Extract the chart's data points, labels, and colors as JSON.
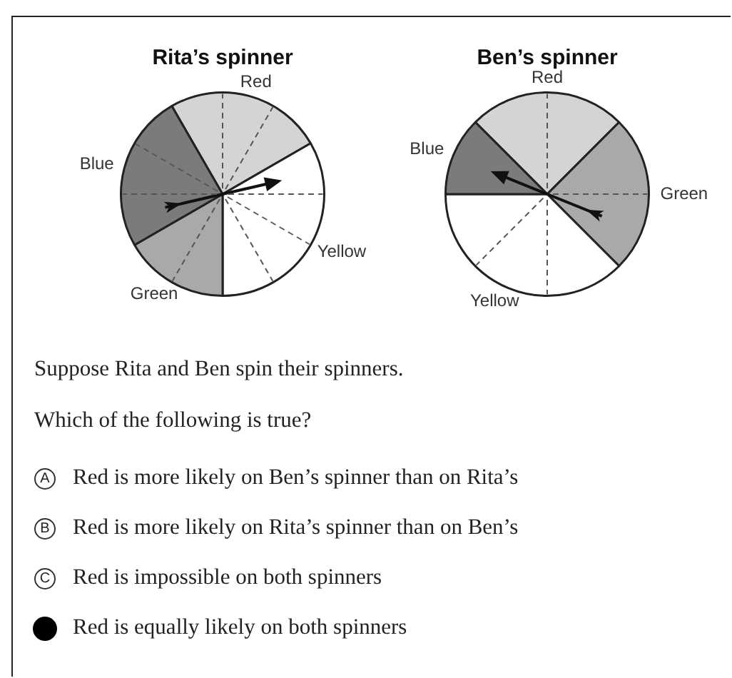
{
  "chart_data": [
    {
      "type": "pie",
      "title": "Rita’s spinner",
      "categories": [
        "Red",
        "Yellow",
        "Green",
        "Blue"
      ],
      "values": [
        25,
        33.33,
        16.67,
        25
      ],
      "colors": [
        "#d4d4d4",
        "#ffffff",
        "#a9a9a9",
        "#7b7b7b"
      ],
      "needle": "Yellow"
    },
    {
      "type": "pie",
      "title": "Ben’s spinner",
      "categories": [
        "Red",
        "Green",
        "Yellow",
        "Blue"
      ],
      "values": [
        25,
        25,
        37.5,
        12.5
      ],
      "colors": [
        "#d4d4d4",
        "#a9a9a9",
        "#ffffff",
        "#7b7b7b"
      ],
      "needle": "Blue"
    },
    {
      "type": "other",
      "annotations": [
        "Suppose Rita and Ben spin their spinners.",
        "Which of the following is true?",
        "A",
        "Red is more likely on Ben’s spinner than on Rita’s",
        "B",
        "Red is more likely on Rita’s spinner than on Ben’s",
        "C",
        "Red is impossible on both spinners",
        "Red is equally likely on both spinners"
      ]
    }
  ]
}
